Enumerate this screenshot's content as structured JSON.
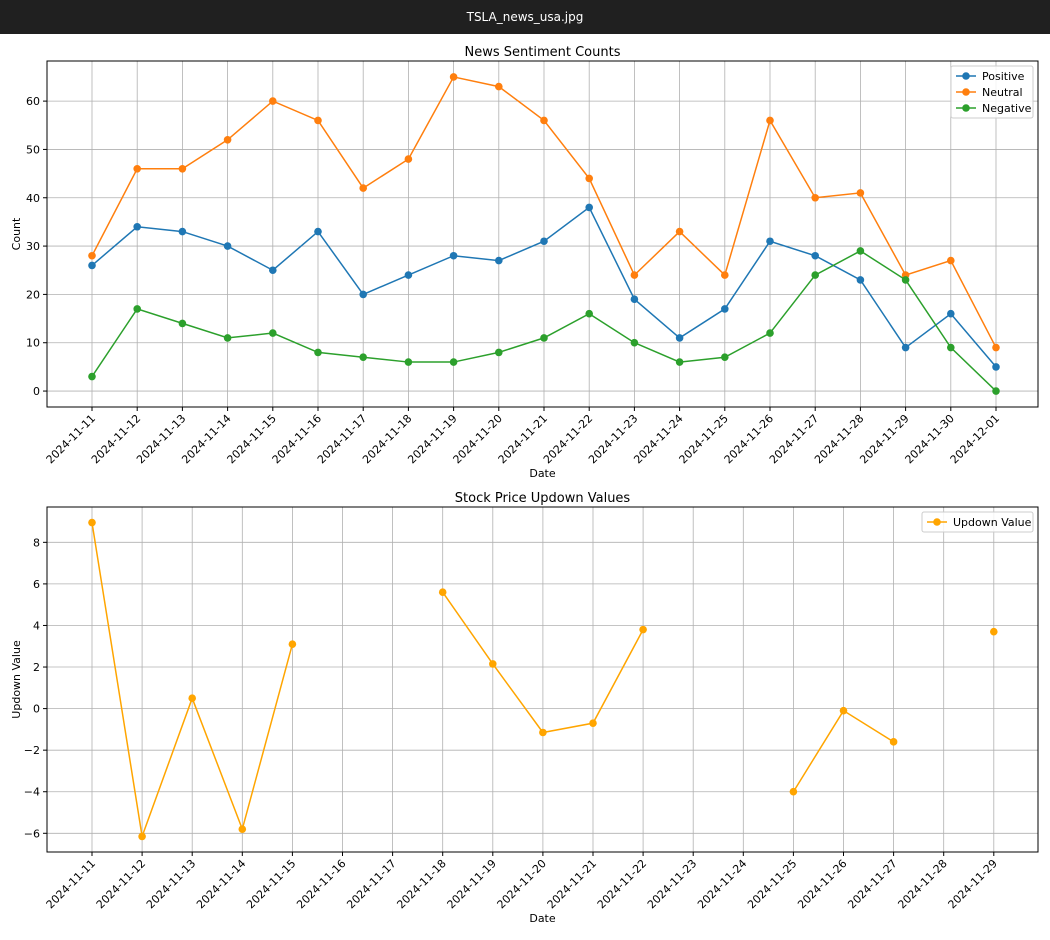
{
  "window": {
    "title": "TSLA_news_usa.jpg"
  },
  "chart_data": [
    {
      "type": "line",
      "title": "News Sentiment Counts",
      "xlabel": "Date",
      "ylabel": "Count",
      "x": [
        "2024-11-11",
        "2024-11-12",
        "2024-11-13",
        "2024-11-14",
        "2024-11-15",
        "2024-11-16",
        "2024-11-17",
        "2024-11-18",
        "2024-11-19",
        "2024-11-20",
        "2024-11-21",
        "2024-11-22",
        "2024-11-23",
        "2024-11-24",
        "2024-11-25",
        "2024-11-26",
        "2024-11-27",
        "2024-11-28",
        "2024-11-29",
        "2024-11-30",
        "2024-12-01"
      ],
      "yticks": [
        0,
        10,
        20,
        30,
        40,
        50,
        60
      ],
      "ylim": [
        -3.3,
        68.3
      ],
      "grid": true,
      "legend": "top-right",
      "series": [
        {
          "name": "Positive",
          "color": "#1f77b4",
          "values": [
            26,
            34,
            33,
            30,
            25,
            33,
            20,
            24,
            28,
            27,
            31,
            38,
            19,
            11,
            17,
            31,
            28,
            23,
            9,
            16,
            5
          ]
        },
        {
          "name": "Neutral",
          "color": "#ff7f0e",
          "values": [
            28,
            46,
            46,
            52,
            60,
            56,
            42,
            48,
            65,
            63,
            56,
            44,
            24,
            33,
            24,
            56,
            40,
            41,
            24,
            27,
            9
          ]
        },
        {
          "name": "Negative",
          "color": "#2ca02c",
          "values": [
            3,
            17,
            14,
            11,
            12,
            8,
            7,
            6,
            6,
            8,
            11,
            16,
            10,
            6,
            7,
            12,
            24,
            29,
            23,
            9,
            0
          ]
        }
      ]
    },
    {
      "type": "line",
      "title": "Stock Price Updown Values",
      "xlabel": "Date",
      "ylabel": "Updown Value",
      "x": [
        "2024-11-11",
        "2024-11-12",
        "2024-11-13",
        "2024-11-14",
        "2024-11-15",
        "2024-11-16",
        "2024-11-17",
        "2024-11-18",
        "2024-11-19",
        "2024-11-20",
        "2024-11-21",
        "2024-11-22",
        "2024-11-23",
        "2024-11-24",
        "2024-11-25",
        "2024-11-26",
        "2024-11-27",
        "2024-11-28",
        "2024-11-29"
      ],
      "yticks": [
        -6,
        -4,
        -2,
        0,
        2,
        4,
        6,
        8
      ],
      "ylim": [
        -6.9,
        9.7
      ],
      "grid": true,
      "legend": "top-right",
      "series": [
        {
          "name": "Updown Value",
          "color": "#ffa500",
          "values": [
            8.95,
            -6.15,
            0.5,
            -5.8,
            3.1,
            null,
            null,
            5.6,
            2.15,
            -1.15,
            -0.7,
            3.8,
            null,
            null,
            -4.0,
            -0.1,
            -1.6,
            null,
            3.7
          ]
        }
      ]
    }
  ]
}
